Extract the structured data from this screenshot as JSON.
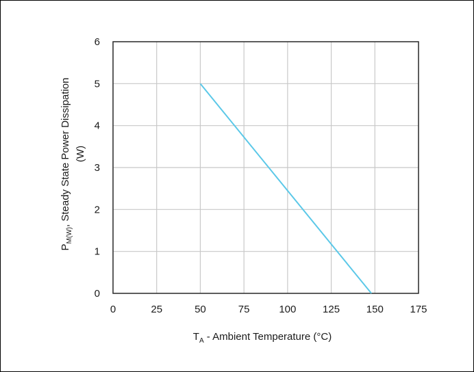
{
  "chart_data": {
    "type": "line",
    "title": "",
    "xlabel": {
      "main": "T",
      "sub": "A",
      "rest": " - Ambient Temperature (°C)"
    },
    "ylabel": {
      "line1_main": "P",
      "line1_sub": "M(W)",
      "line1_rest": ", Steady State Power Dissipation",
      "line2": "(W)"
    },
    "xlim": [
      0,
      175
    ],
    "ylim": [
      0,
      6
    ],
    "xticks": [
      0,
      25,
      50,
      75,
      100,
      125,
      150,
      175
    ],
    "yticks": [
      0,
      1,
      2,
      3,
      4,
      5,
      6
    ],
    "grid": true,
    "series": [
      {
        "x": [
          50,
          148
        ],
        "y": [
          5,
          0
        ],
        "color": "#5bc8e8"
      }
    ]
  }
}
